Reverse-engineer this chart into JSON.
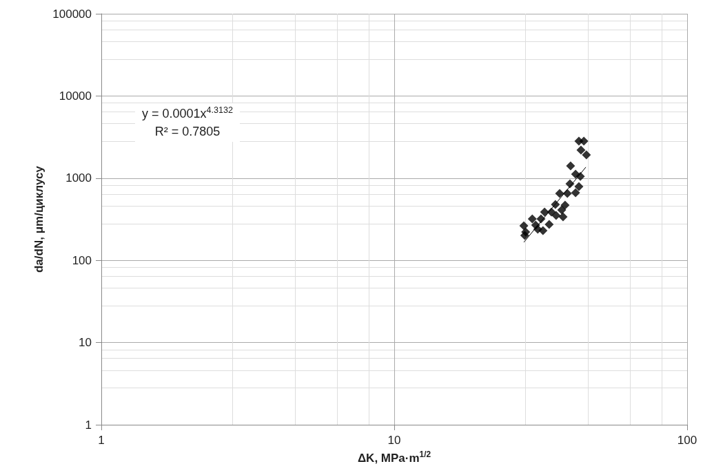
{
  "chart_data": {
    "type": "scatter",
    "xlabel": "ΔK, MPa·m$^{1/2}$",
    "ylabel": "da/dN, μm/циклусу",
    "log": "xy",
    "xlim": [
      1,
      100
    ],
    "xticks": [
      1,
      10,
      100
    ],
    "ylim": [
      1,
      100000
    ],
    "yticks": [
      1,
      10,
      100,
      1000,
      10000,
      100000
    ],
    "grid": true,
    "marker": "diamond",
    "annotations": [
      "y = 0.0001x$^{4.3132}$",
      "R² = 0.7805"
    ],
    "series": [
      {
        "color": "#000000",
        "x": [
          42.7,
          44.4,
          43.4,
          45.3,
          40.0,
          41.6,
          43.2,
          39.8,
          42.7,
          36.7,
          39.0,
          41.6,
          35.5,
          38.3,
          32.6,
          34.4,
          37.3,
          29.6,
          31.7,
          35.7,
          37.7,
          27.7,
          30.4,
          33.8,
          30.9,
          32.2,
          28.1,
          27.9
        ],
        "values": [
          2820,
          2820,
          2200,
          1920,
          1410,
          1120,
          1050,
          854,
          790,
          652,
          652,
          664,
          479,
          470,
          387,
          387,
          410,
          319,
          319,
          352,
          338,
          263,
          268,
          274,
          239,
          230,
          221,
          201
        ]
      },
      {
        "type": "line",
        "color": "#000000",
        "marker": "none",
        "x": [
          27.7,
          45.1
        ],
        "values": [
          166,
          1361
        ]
      }
    ]
  }
}
